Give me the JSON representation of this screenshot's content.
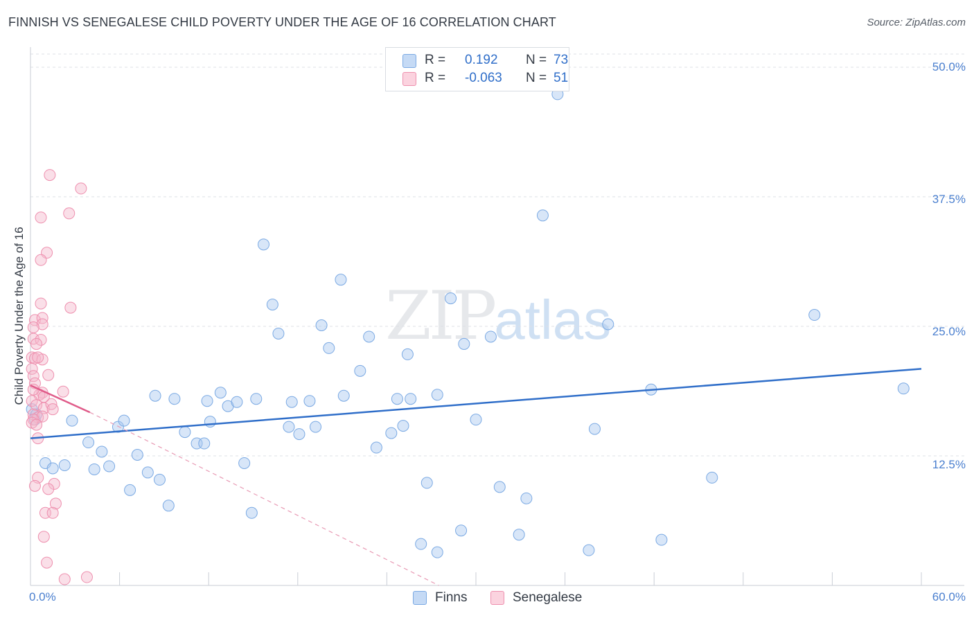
{
  "title": "FINNISH VS SENEGALESE CHILD POVERTY UNDER THE AGE OF 16 CORRELATION CHART",
  "source": "Source: ZipAtlas.com",
  "watermark": {
    "zip": "ZIP",
    "atlas": "atlas"
  },
  "legend_top": {
    "rows": [
      {
        "r_label": "R =",
        "r_value": "0.192",
        "n_label": "N =",
        "n_value": "73",
        "color": "#a9c8f0"
      },
      {
        "r_label": "R =",
        "r_value": "-0.063",
        "n_label": "N =",
        "n_value": "51",
        "color": "#f5b8cb"
      }
    ]
  },
  "legend_bottom": [
    {
      "label": "Finns",
      "color": "#a9c8f0"
    },
    {
      "label": "Senegalese",
      "color": "#f5b8cb"
    }
  ],
  "chart_data": {
    "type": "scatter",
    "title": "FINNISH VS SENEGALESE CHILD POVERTY UNDER THE AGE OF 16 CORRELATION CHART",
    "xlabel": "",
    "ylabel": "Child Poverty Under the Age of 16",
    "xlim": [
      0,
      60
    ],
    "ylim": [
      0,
      51
    ],
    "x_tick_labels": [
      "0.0%",
      "60.0%"
    ],
    "y_ticks": [
      12.5,
      25.0,
      37.5,
      50.0
    ],
    "y_tick_labels": [
      "12.5%",
      "25.0%",
      "37.5%",
      "50.0%"
    ],
    "series": [
      {
        "name": "Finns",
        "color": "#a9c8f0",
        "stroke": "#7aa9e3",
        "trend": {
          "x": [
            0,
            60
          ],
          "y": [
            14.2,
            20.9
          ],
          "color": "#2f6ec9",
          "dash": false
        },
        "points": [
          [
            35.5,
            47.4
          ],
          [
            34.5,
            35.7
          ],
          [
            15.7,
            32.9
          ],
          [
            20.9,
            29.5
          ],
          [
            28.3,
            27.7
          ],
          [
            16.3,
            27.1
          ],
          [
            38.9,
            25.2
          ],
          [
            52.8,
            26.1
          ],
          [
            19.6,
            25.1
          ],
          [
            16.7,
            24.3
          ],
          [
            22.8,
            24.0
          ],
          [
            31.0,
            24.0
          ],
          [
            20.1,
            22.9
          ],
          [
            29.2,
            23.3
          ],
          [
            25.4,
            22.3
          ],
          [
            22.2,
            20.7
          ],
          [
            0.1,
            17.0
          ],
          [
            0.3,
            16.0
          ],
          [
            0.4,
            16.5
          ],
          [
            2.8,
            15.9
          ],
          [
            5.9,
            15.3
          ],
          [
            6.3,
            15.9
          ],
          [
            8.4,
            18.3
          ],
          [
            9.7,
            18.0
          ],
          [
            11.9,
            17.8
          ],
          [
            12.8,
            18.6
          ],
          [
            13.3,
            17.3
          ],
          [
            13.9,
            17.7
          ],
          [
            15.2,
            18.0
          ],
          [
            17.6,
            17.7
          ],
          [
            18.8,
            17.8
          ],
          [
            21.1,
            18.3
          ],
          [
            24.7,
            18.0
          ],
          [
            25.6,
            18.0
          ],
          [
            27.4,
            18.4
          ],
          [
            12.1,
            15.8
          ],
          [
            17.4,
            15.3
          ],
          [
            18.1,
            14.6
          ],
          [
            19.2,
            15.3
          ],
          [
            24.3,
            14.7
          ],
          [
            25.1,
            15.4
          ],
          [
            30.0,
            16.0
          ],
          [
            38.0,
            15.1
          ],
          [
            41.8,
            18.9
          ],
          [
            58.8,
            19.0
          ],
          [
            10.4,
            14.8
          ],
          [
            11.2,
            13.7
          ],
          [
            11.7,
            13.7
          ],
          [
            23.3,
            13.3
          ],
          [
            3.9,
            13.8
          ],
          [
            4.8,
            12.9
          ],
          [
            7.2,
            12.6
          ],
          [
            1.0,
            11.8
          ],
          [
            1.5,
            11.3
          ],
          [
            2.3,
            11.6
          ],
          [
            4.3,
            11.2
          ],
          [
            5.3,
            11.5
          ],
          [
            14.4,
            11.8
          ],
          [
            7.9,
            10.9
          ],
          [
            8.7,
            10.2
          ],
          [
            6.7,
            9.2
          ],
          [
            26.7,
            9.9
          ],
          [
            31.6,
            9.5
          ],
          [
            33.4,
            8.4
          ],
          [
            45.9,
            10.4
          ],
          [
            9.3,
            7.7
          ],
          [
            14.9,
            7.0
          ],
          [
            29.0,
            5.3
          ],
          [
            32.9,
            4.9
          ],
          [
            26.3,
            4.0
          ],
          [
            27.4,
            3.2
          ],
          [
            37.6,
            3.4
          ],
          [
            42.5,
            4.4
          ]
        ]
      },
      {
        "name": "Senegalese",
        "color": "#f5b8cb",
        "stroke": "#ee8fae",
        "trend": {
          "x": [
            0,
            4.0
          ],
          "y": [
            19.3,
            16.7
          ],
          "color": "#e05c8a",
          "dash": false
        },
        "trend_ext": {
          "x": [
            4.0,
            27.5
          ],
          "y": [
            16.7,
            0.0
          ],
          "color": "#e89ab4",
          "dash": true
        },
        "points": [
          [
            1.3,
            39.6
          ],
          [
            3.4,
            38.3
          ],
          [
            2.6,
            35.9
          ],
          [
            0.7,
            35.5
          ],
          [
            1.1,
            32.1
          ],
          [
            0.7,
            31.4
          ],
          [
            0.7,
            27.2
          ],
          [
            2.7,
            26.8
          ],
          [
            0.3,
            25.6
          ],
          [
            0.8,
            25.8
          ],
          [
            0.8,
            25.2
          ],
          [
            0.2,
            24.9
          ],
          [
            0.2,
            23.8
          ],
          [
            0.7,
            23.7
          ],
          [
            0.4,
            23.3
          ],
          [
            0.1,
            22.0
          ],
          [
            0.3,
            21.9
          ],
          [
            0.8,
            21.8
          ],
          [
            0.1,
            20.9
          ],
          [
            0.2,
            20.2
          ],
          [
            0.3,
            19.5
          ],
          [
            0.8,
            18.6
          ],
          [
            0.6,
            18.4
          ],
          [
            2.2,
            18.7
          ],
          [
            0.1,
            17.8
          ],
          [
            0.4,
            17.4
          ],
          [
            0.9,
            17.1
          ],
          [
            1.4,
            17.5
          ],
          [
            1.5,
            17.0
          ],
          [
            0.2,
            16.5
          ],
          [
            0.5,
            16.2
          ],
          [
            0.8,
            16.3
          ],
          [
            0.2,
            16.0
          ],
          [
            0.1,
            15.7
          ],
          [
            0.4,
            15.5
          ],
          [
            0.5,
            14.2
          ],
          [
            0.5,
            10.4
          ],
          [
            1.6,
            9.8
          ],
          [
            0.3,
            9.6
          ],
          [
            1.2,
            9.3
          ],
          [
            1.7,
            7.9
          ],
          [
            1.0,
            7.0
          ],
          [
            1.5,
            7.0
          ],
          [
            0.9,
            4.7
          ],
          [
            1.1,
            2.2
          ],
          [
            2.3,
            0.6
          ],
          [
            3.8,
            0.8
          ],
          [
            0.2,
            18.9
          ],
          [
            0.9,
            18.2
          ],
          [
            0.5,
            22.0
          ],
          [
            1.2,
            20.3
          ]
        ]
      }
    ]
  }
}
